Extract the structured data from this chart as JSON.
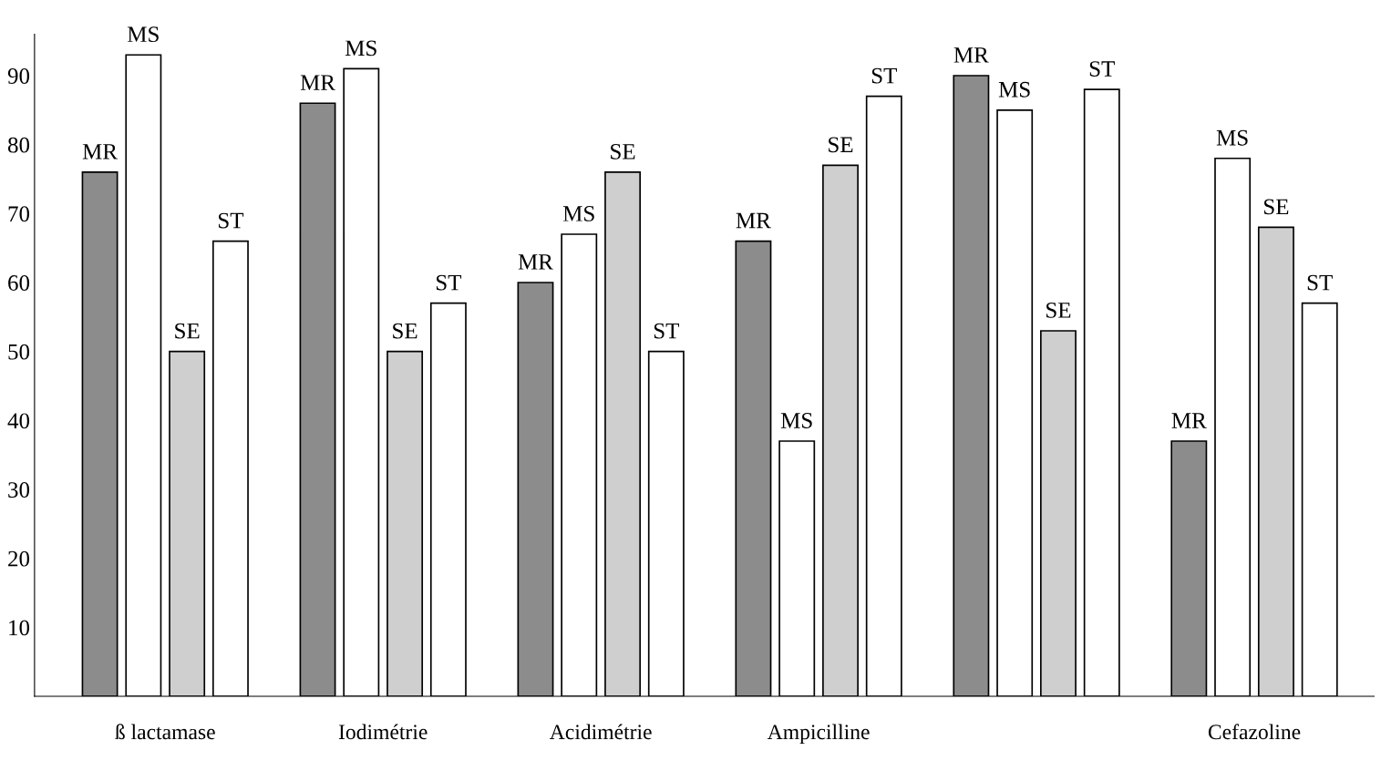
{
  "chart_data": {
    "type": "bar",
    "categories": [
      "ß lactamase",
      "Iodimétrie",
      "Acidimétrie",
      "Ampicilline",
      null,
      "Cefazoline"
    ],
    "series": [
      {
        "name": "MR",
        "color": "#8c8c8c",
        "values": [
          76,
          86,
          60,
          66,
          90,
          37
        ]
      },
      {
        "name": "MS",
        "color": "#ffffff",
        "values": [
          93,
          91,
          67,
          37,
          85,
          78
        ]
      },
      {
        "name": "SE",
        "color": "#cfcfcf",
        "values": [
          50,
          50,
          76,
          77,
          53,
          68
        ]
      },
      {
        "name": "ST",
        "color": "#ffffff",
        "values": [
          66,
          57,
          50,
          87,
          88,
          57
        ]
      }
    ],
    "ylim": [
      0,
      96
    ],
    "yticks": [
      10,
      20,
      30,
      40,
      50,
      60,
      70,
      80,
      90
    ],
    "grid": false,
    "legend": false
  }
}
